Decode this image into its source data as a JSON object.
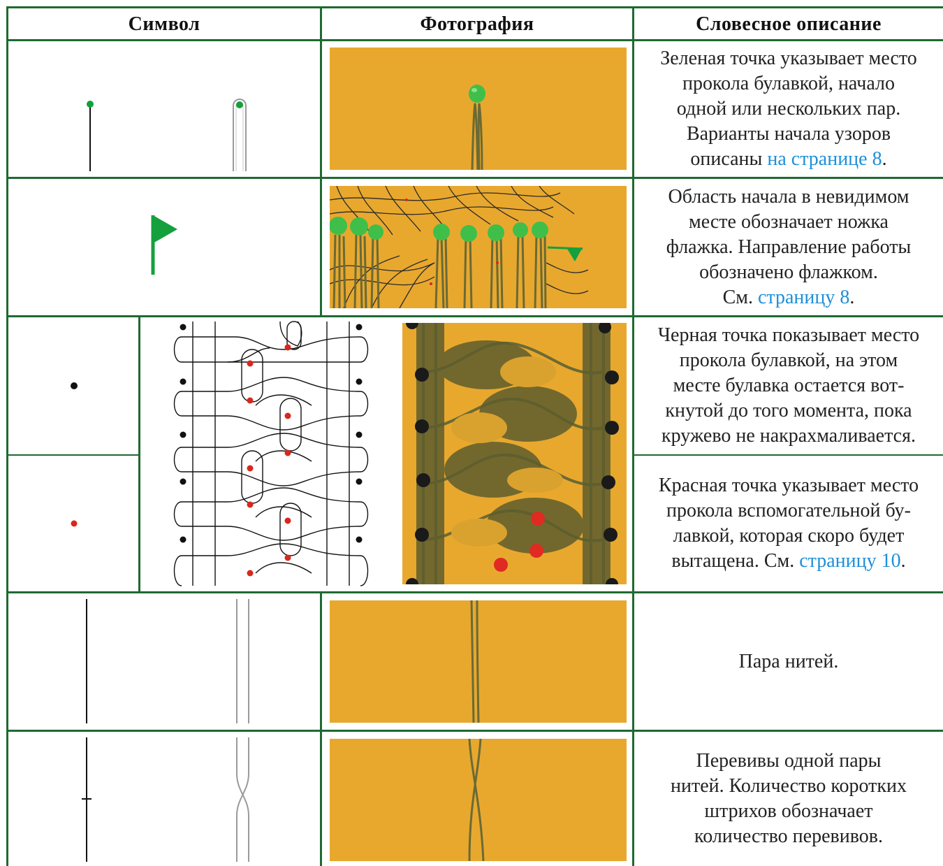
{
  "header": {
    "col_symbol": "Символ",
    "col_photo": "Фотография",
    "col_description": "Словесное описание"
  },
  "rows": [
    {
      "lines": [
        "Зеленая точка указывает место",
        "прокола булавкой, начало",
        "одной или нескольких пар.",
        "Варианты начала узоров"
      ],
      "last_prefix": "описаны ",
      "last_link": "на странице 8",
      "last_suffix": "."
    },
    {
      "lines": [
        "Область начала в невидимом",
        "месте обозначает ножка",
        "флажка. Направление работы",
        "обозначено флажком."
      ],
      "last_prefix": "См. ",
      "last_link": "страницу 8",
      "last_suffix": "."
    },
    {
      "lines": [
        "Черная точка показывает место",
        "прокола булавкой, на этом",
        "месте булавка остается вот-",
        "кнутой до того момента, пока",
        "кружево не накрахмаливается."
      ]
    },
    {
      "lines": [
        "Красная точка указывает место",
        "прокола вспомогательной бу-",
        "лавкой, которая скоро будет"
      ],
      "last_prefix": "вытащена. См. ",
      "last_link": "страницу 10",
      "last_suffix": "."
    },
    {
      "lines": [
        "Пара нитей."
      ]
    },
    {
      "lines": [
        "Перевивы одной пары",
        "нитей. Количество коротких",
        "штрихов обозначает",
        "количество перевивов."
      ]
    }
  ],
  "colors": {
    "grid": "#1e6a32",
    "green_pin": "#14a03c",
    "black_pin": "#111111",
    "red_pin": "#d8281e",
    "photo_bg": "#e8a82e",
    "thread": "#6b6a34",
    "link": "#1f8fd8"
  }
}
